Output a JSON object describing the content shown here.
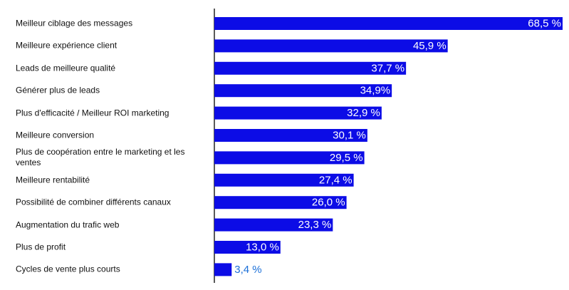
{
  "chart_data": {
    "type": "bar",
    "orientation": "horizontal",
    "categories": [
      "Meilleur ciblage des messages",
      "Meilleure expérience client",
      "Leads de meilleure qualité",
      "Générer plus de leads",
      "Plus d'efficacité / Meilleur ROI marketing",
      "Meilleure conversion",
      "Plus de coopération entre le marketing et les ventes",
      "Meilleure rentabilité",
      "Possibilité de combiner différents canaux",
      "Augmentation du trafic web",
      "Plus de profit",
      "Cycles de vente plus courts"
    ],
    "values": [
      68.5,
      45.9,
      37.7,
      34.9,
      32.9,
      30.1,
      29.5,
      27.4,
      26.0,
      23.3,
      13.0,
      3.4
    ],
    "value_labels": [
      "68,5 %",
      "45,9 %",
      "37,7 %",
      "34,9%",
      "32,9 %",
      "30,1 %",
      "29,5 %",
      "27,4 %",
      "26,0 %",
      "23,3 %",
      "13,0 %",
      "3,4 %"
    ],
    "color": "#0c0ce6"
  }
}
